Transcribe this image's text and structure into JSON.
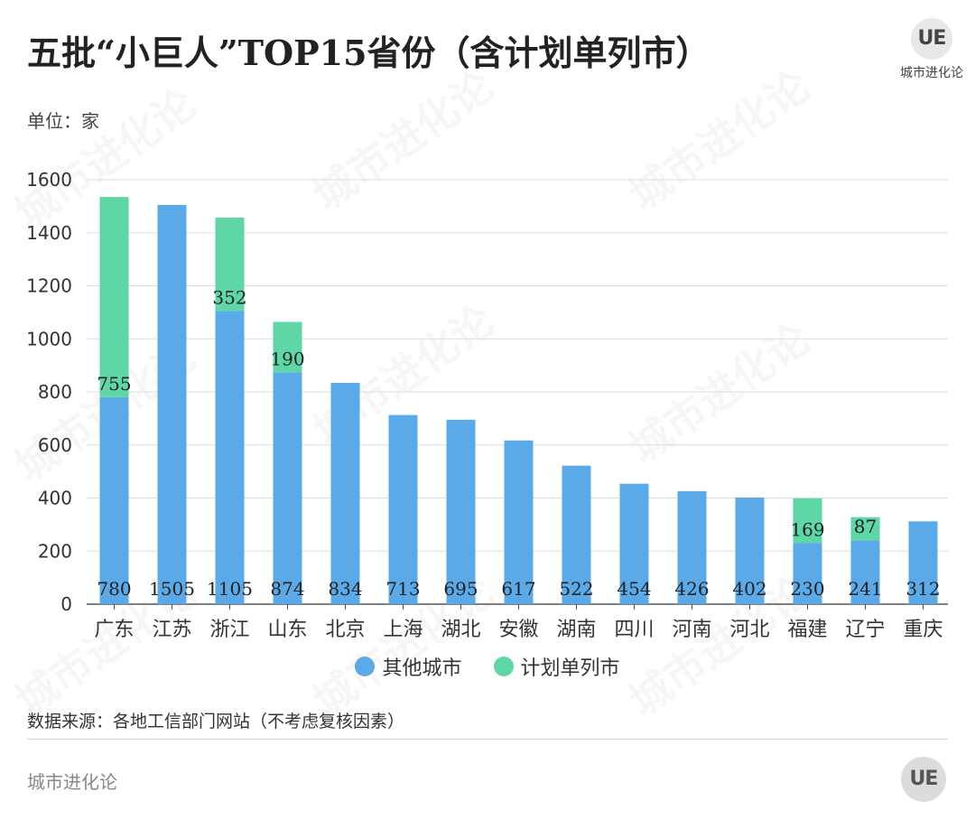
{
  "title": "五批“小巨人”TOP15省份（含计划单列市）",
  "brand": {
    "logo": "UE",
    "name": "城市进化论"
  },
  "unit": "单位：家",
  "source": "数据来源：各地工信部门网站（不考虑复核因素）",
  "footer": "城市进化论",
  "colors": {
    "other": "#5aaaea",
    "plan": "#5ed6a5",
    "grid": "#dddddd"
  },
  "legend": [
    {
      "label": "其他城市",
      "color": "#5aaaea"
    },
    {
      "label": "计划单列市",
      "color": "#5ed6a5"
    }
  ],
  "chart_data": {
    "type": "bar",
    "stacked": true,
    "title": "五批“小巨人”TOP15省份（含计划单列市）",
    "ylabel": "单位：家",
    "ylim": [
      0,
      1600
    ],
    "yticks": [
      0,
      200,
      400,
      600,
      800,
      1000,
      1200,
      1400,
      1600
    ],
    "categories": [
      "广东",
      "江苏",
      "浙江",
      "山东",
      "北京",
      "上海",
      "湖北",
      "安徽",
      "湖南",
      "四川",
      "河南",
      "河北",
      "福建",
      "辽宁",
      "重庆"
    ],
    "series": [
      {
        "name": "其他城市",
        "values": [
          780,
          1505,
          1105,
          874,
          834,
          713,
          695,
          617,
          522,
          454,
          426,
          402,
          230,
          241,
          312
        ]
      },
      {
        "name": "计划单列市",
        "values": [
          755,
          null,
          352,
          190,
          null,
          null,
          null,
          null,
          null,
          null,
          null,
          null,
          169,
          87,
          null
        ]
      }
    ],
    "legend_position": "bottom",
    "grid": true
  }
}
